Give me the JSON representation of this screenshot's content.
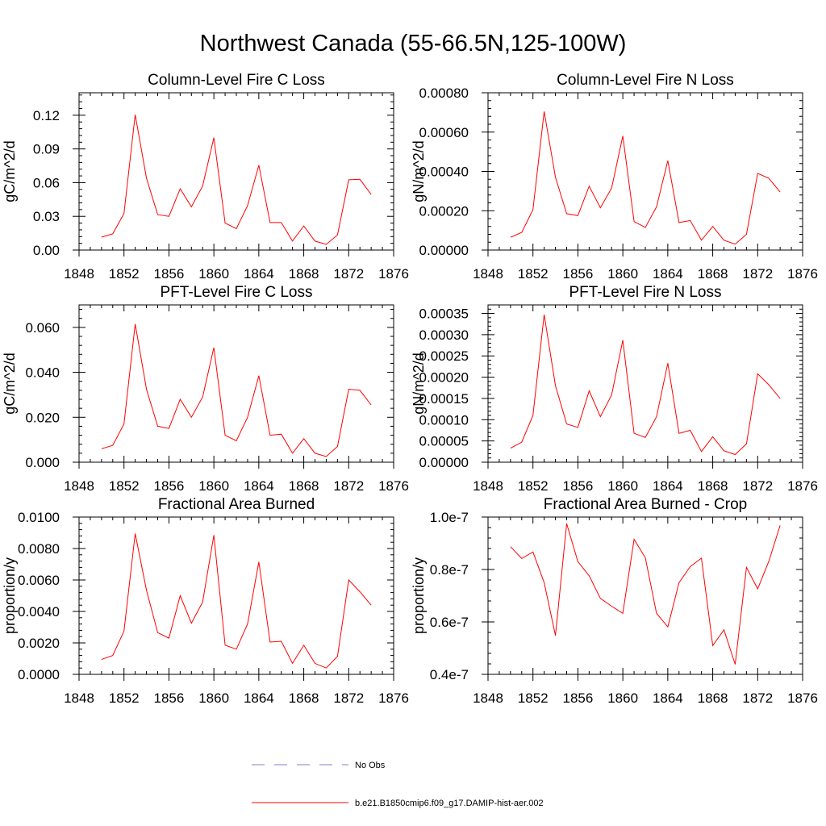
{
  "page": {
    "title": "Northwest Canada (55-66.5N,125-100W)"
  },
  "legend": [
    {
      "label": "No Obs",
      "color": "#7f7fd0",
      "dashed": true
    },
    {
      "label": "b.e21.B1850cmip6.f09_g17.DAMIP-hist-aer.002",
      "color": "#ff0000",
      "dashed": false
    }
  ],
  "chart_data": [
    {
      "type": "line",
      "title": "Column-Level Fire C Loss",
      "ylabel": "gC/m^2/d",
      "xlim": [
        1848,
        1876
      ],
      "xticks": [
        "1848",
        "1852",
        "1856",
        "1860",
        "1864",
        "1868",
        "1872",
        "1876"
      ],
      "ylim": [
        0,
        0.14
      ],
      "yticks": [
        0,
        0.03,
        0.06,
        0.09,
        0.12
      ],
      "ytick_labels": [
        "0.00",
        "0.03",
        "0.06",
        "0.09",
        "0.12"
      ],
      "x": [
        1850,
        1851,
        1852,
        1853,
        1854,
        1855,
        1856,
        1857,
        1858,
        1859,
        1860,
        1861,
        1862,
        1863,
        1864,
        1865,
        1866,
        1867,
        1868,
        1869,
        1870,
        1871,
        1872,
        1873,
        1874
      ],
      "series": [
        {
          "color": "#ff0000",
          "values": [
            0.0115,
            0.0145,
            0.0325,
            0.1205,
            0.064,
            0.0315,
            0.03,
            0.0545,
            0.0385,
            0.057,
            0.1,
            0.024,
            0.019,
            0.0395,
            0.0755,
            0.0245,
            0.0245,
            0.008,
            0.0215,
            0.008,
            0.005,
            0.0135,
            0.0625,
            0.063,
            0.0495
          ]
        }
      ]
    },
    {
      "type": "line",
      "title": "Column-Level Fire N Loss",
      "ylabel": "gN/m^2/d",
      "xlim": [
        1848,
        1876
      ],
      "xticks": [
        "1848",
        "1852",
        "1856",
        "1860",
        "1864",
        "1868",
        "1872",
        "1876"
      ],
      "ylim": [
        0,
        0.0008
      ],
      "yticks": [
        0,
        0.0002,
        0.0004,
        0.0006,
        0.0008
      ],
      "ytick_labels": [
        "0.00000",
        "0.00020",
        "0.00040",
        "0.00060",
        "0.00080"
      ],
      "x": [
        1850,
        1851,
        1852,
        1853,
        1854,
        1855,
        1856,
        1857,
        1858,
        1859,
        1860,
        1861,
        1862,
        1863,
        1864,
        1865,
        1866,
        1867,
        1868,
        1869,
        1870,
        1871,
        1872,
        1873,
        1874
      ],
      "series": [
        {
          "color": "#ff0000",
          "values": [
            6.5e-05,
            9e-05,
            0.000205,
            0.000705,
            0.00037,
            0.000185,
            0.000175,
            0.000325,
            0.000215,
            0.000315,
            0.00058,
            0.000145,
            0.000115,
            0.00022,
            0.000455,
            0.00014,
            0.00015,
            5e-05,
            0.00012,
            5e-05,
            3e-05,
            8e-05,
            0.00039,
            0.000365,
            0.000295
          ]
        }
      ]
    },
    {
      "type": "line",
      "title": "PFT-Level Fire C Loss",
      "ylabel": "gC/m^2/d",
      "xlim": [
        1848,
        1876
      ],
      "xticks": [
        "1848",
        "1852",
        "1856",
        "1860",
        "1864",
        "1868",
        "1872",
        "1876"
      ],
      "ylim": [
        0,
        0.07
      ],
      "yticks": [
        0,
        0.02,
        0.04,
        0.06
      ],
      "ytick_labels": [
        "0.000",
        "0.020",
        "0.040",
        "0.060"
      ],
      "x": [
        1850,
        1851,
        1852,
        1853,
        1854,
        1855,
        1856,
        1857,
        1858,
        1859,
        1860,
        1861,
        1862,
        1863,
        1864,
        1865,
        1866,
        1867,
        1868,
        1869,
        1870,
        1871,
        1872,
        1873,
        1874
      ],
      "series": [
        {
          "color": "#ff0000",
          "values": [
            0.006,
            0.0075,
            0.017,
            0.0615,
            0.0325,
            0.016,
            0.015,
            0.028,
            0.02,
            0.029,
            0.051,
            0.012,
            0.0095,
            0.02,
            0.0385,
            0.012,
            0.0125,
            0.004,
            0.0105,
            0.004,
            0.0025,
            0.007,
            0.0325,
            0.032,
            0.0255
          ]
        }
      ]
    },
    {
      "type": "line",
      "title": "PFT-Level Fire N Loss",
      "ylabel": "gN/m^2/d",
      "xlim": [
        1848,
        1876
      ],
      "xticks": [
        "1848",
        "1852",
        "1856",
        "1860",
        "1864",
        "1868",
        "1872",
        "1876"
      ],
      "ylim": [
        0,
        0.00037
      ],
      "yticks": [
        0,
        5e-05,
        0.0001,
        0.00015,
        0.0002,
        0.00025,
        0.0003,
        0.00035
      ],
      "ytick_labels": [
        "0.00000",
        "0.00005",
        "0.00010",
        "0.00015",
        "0.00020",
        "0.00025",
        "0.00030",
        "0.00035"
      ],
      "x": [
        1850,
        1851,
        1852,
        1853,
        1854,
        1855,
        1856,
        1857,
        1858,
        1859,
        1860,
        1861,
        1862,
        1863,
        1864,
        1865,
        1866,
        1867,
        1868,
        1869,
        1870,
        1871,
        1872,
        1873,
        1874
      ],
      "series": [
        {
          "color": "#ff0000",
          "values": [
            3.3e-05,
            4.7e-05,
            0.00011,
            0.000347,
            0.00018,
            9e-05,
            8.2e-05,
            0.000168,
            0.000107,
            0.000158,
            0.000287,
            6.8e-05,
            5.8e-05,
            0.000107,
            0.000233,
            6.8e-05,
            7.5e-05,
            2.5e-05,
            6e-05,
            2.7e-05,
            1.8e-05,
            4.3e-05,
            0.000208,
            0.000182,
            0.00015
          ]
        }
      ]
    },
    {
      "type": "line",
      "title": "Fractional Area Burned",
      "ylabel": "proportion/y",
      "xlim": [
        1848,
        1876
      ],
      "xticks": [
        "1848",
        "1852",
        "1856",
        "1860",
        "1864",
        "1868",
        "1872",
        "1876"
      ],
      "ylim": [
        0,
        0.01
      ],
      "yticks": [
        0,
        0.002,
        0.004,
        0.006,
        0.008,
        0.01
      ],
      "ytick_labels": [
        "0.0000",
        "0.0020",
        "0.0040",
        "0.0060",
        "0.0080",
        "0.0100"
      ],
      "x": [
        1850,
        1851,
        1852,
        1853,
        1854,
        1855,
        1856,
        1857,
        1858,
        1859,
        1860,
        1861,
        1862,
        1863,
        1864,
        1865,
        1866,
        1867,
        1868,
        1869,
        1870,
        1871,
        1872,
        1873,
        1874
      ],
      "series": [
        {
          "color": "#ff0000",
          "values": [
            0.00095,
            0.0012,
            0.00275,
            0.00895,
            0.00535,
            0.00265,
            0.0023,
            0.005,
            0.00325,
            0.0046,
            0.00885,
            0.00185,
            0.0016,
            0.0032,
            0.00715,
            0.00205,
            0.0021,
            0.0007,
            0.00185,
            0.0007,
            0.0004,
            0.00115,
            0.006,
            0.00525,
            0.0044
          ]
        }
      ]
    },
    {
      "type": "line",
      "title": "Fractional Area Burned - Crop",
      "ylabel": "proportion/y",
      "xlim": [
        1848,
        1876
      ],
      "xticks": [
        "1848",
        "1852",
        "1856",
        "1860",
        "1864",
        "1868",
        "1872",
        "1876"
      ],
      "ylim": [
        4e-08,
        1e-07
      ],
      "yticks": [
        4e-08,
        6e-08,
        8e-08,
        1e-07
      ],
      "ytick_labels": [
        "0.4e-7",
        "0.6e-7",
        "0.8e-7",
        "1.0e-7"
      ],
      "x": [
        1850,
        1851,
        1852,
        1853,
        1854,
        1855,
        1856,
        1857,
        1858,
        1859,
        1860,
        1861,
        1862,
        1863,
        1864,
        1865,
        1866,
        1867,
        1868,
        1869,
        1870,
        1871,
        1872,
        1873,
        1874
      ],
      "series": [
        {
          "color": "#ff0000",
          "values": [
            8.87e-08,
            8.42e-08,
            8.67e-08,
            7.5e-08,
            5.48e-08,
            9.75e-08,
            8.3e-08,
            7.76e-08,
            6.9e-08,
            6.6e-08,
            6.33e-08,
            9.15e-08,
            8.45e-08,
            6.33e-08,
            5.81e-08,
            7.5e-08,
            8.11e-08,
            8.43e-08,
            5.1e-08,
            5.7e-08,
            4.38e-08,
            8.08e-08,
            7.26e-08,
            8.32e-08,
            9.68e-08
          ]
        }
      ]
    }
  ]
}
